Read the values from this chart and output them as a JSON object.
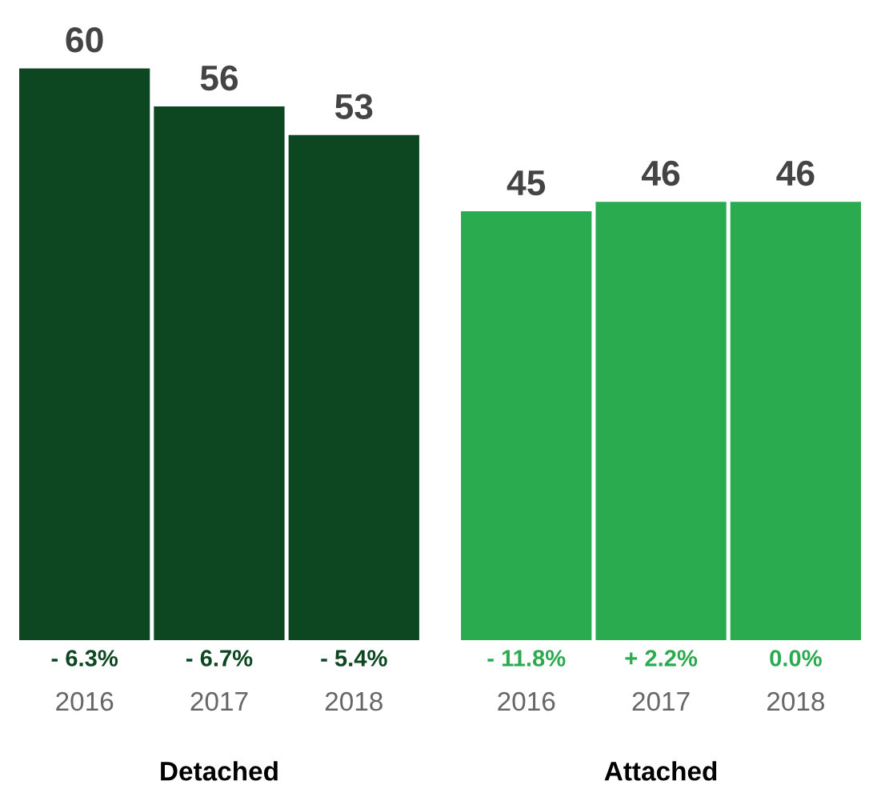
{
  "chart_data": {
    "type": "bar",
    "categories": [
      "2016",
      "2017",
      "2018",
      "2016",
      "2017",
      "2018"
    ],
    "values": [
      60,
      56,
      53,
      45,
      46,
      46
    ],
    "colors": [
      "#0c4722",
      "#0c4722",
      "#0c4722",
      "#2bab4f",
      "#2bab4f",
      "#2bab4f"
    ],
    "data_labels": true,
    "annotations": [
      "- 6.3%",
      "- 6.7%",
      "- 5.4%",
      "- 11.8%",
      "+ 2.2%",
      "0.0%",
      "Detached",
      "Attached"
    ],
    "grid": false
  }
}
